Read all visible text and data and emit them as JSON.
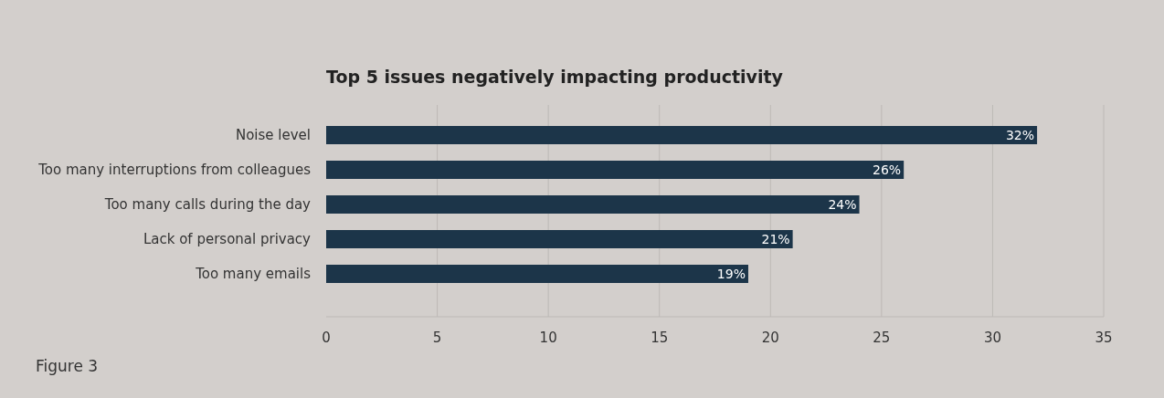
{
  "chart_data": {
    "type": "bar",
    "orientation": "horizontal",
    "title": "Top 5 issues negatively impacting productivity",
    "categories": [
      "Noise level",
      "Too many interruptions from colleagues",
      "Too many calls during the day",
      "Lack of personal privacy",
      "Too many emails"
    ],
    "values": [
      32,
      26,
      24,
      21,
      19
    ],
    "value_labels": [
      "32%",
      "26%",
      "24%",
      "21%",
      "19%"
    ],
    "color": "#1c3549",
    "xlim": [
      0,
      35
    ],
    "xticks": [
      0,
      5,
      10,
      15,
      20,
      25,
      30,
      35
    ],
    "grid": "x",
    "annotations": [
      "Figure 3"
    ]
  }
}
